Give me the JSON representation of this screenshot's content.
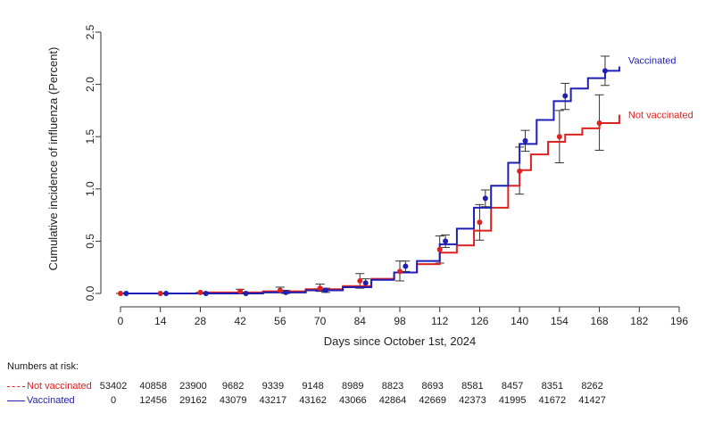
{
  "chart_data": {
    "type": "line",
    "xlabel": "Days since October 1st, 2024",
    "ylabel": "Cumulative incidence of influenza (Percent)",
    "xlim": [
      0,
      196
    ],
    "ylim": [
      0,
      2.5
    ],
    "x_ticks": [
      "0",
      "14",
      "28",
      "42",
      "56",
      "70",
      "84",
      "98",
      "112",
      "126",
      "140",
      "154",
      "168",
      "182",
      "196"
    ],
    "y_ticks": [
      "0.0",
      "0.5",
      "1.0",
      "1.5",
      "2.0",
      "2.5"
    ],
    "grid": false,
    "series": [
      {
        "name": "Not vaccinated",
        "color": "#dd2222",
        "curve": [
          [
            0,
            0
          ],
          [
            10,
            0
          ],
          [
            30,
            0.01
          ],
          [
            50,
            0.02
          ],
          [
            65,
            0.04
          ],
          [
            78,
            0.07
          ],
          [
            88,
            0.14
          ],
          [
            96,
            0.2
          ],
          [
            104,
            0.28
          ],
          [
            112,
            0.39
          ],
          [
            118,
            0.46
          ],
          [
            124,
            0.6
          ],
          [
            130,
            0.82
          ],
          [
            136,
            1.03
          ],
          [
            140,
            1.18
          ],
          [
            144,
            1.33
          ],
          [
            150,
            1.45
          ],
          [
            156,
            1.52
          ],
          [
            162,
            1.58
          ],
          [
            168,
            1.63
          ],
          [
            175,
            1.71
          ]
        ],
        "points": [
          [
            0,
            0
          ],
          [
            14,
            0
          ],
          [
            28,
            0.01
          ],
          [
            42,
            0.02
          ],
          [
            56,
            0.03
          ],
          [
            70,
            0.05
          ],
          [
            84,
            0.12
          ],
          [
            98,
            0.21
          ],
          [
            112,
            0.42
          ],
          [
            126,
            0.68
          ],
          [
            140,
            1.17
          ],
          [
            154,
            1.5
          ],
          [
            168,
            1.63
          ]
        ],
        "ci": [
          [
            0,
            0,
            0
          ],
          [
            14,
            0,
            0
          ],
          [
            28,
            0,
            0.01
          ],
          [
            42,
            0,
            0.04
          ],
          [
            56,
            0.01,
            0.06
          ],
          [
            70,
            0.02,
            0.09
          ],
          [
            84,
            0.05,
            0.19
          ],
          [
            98,
            0.12,
            0.31
          ],
          [
            112,
            0.29,
            0.55
          ],
          [
            126,
            0.51,
            0.85
          ],
          [
            140,
            0.95,
            1.4
          ],
          [
            154,
            1.25,
            1.75
          ],
          [
            168,
            1.37,
            1.9
          ]
        ],
        "label": "Not vaccinated"
      },
      {
        "name": "Vaccinated",
        "color": "#1f1fb4",
        "curve": [
          [
            0,
            0
          ],
          [
            14,
            0
          ],
          [
            30,
            0.0
          ],
          [
            50,
            0.01
          ],
          [
            65,
            0.03
          ],
          [
            78,
            0.06
          ],
          [
            88,
            0.13
          ],
          [
            96,
            0.2
          ],
          [
            104,
            0.31
          ],
          [
            112,
            0.47
          ],
          [
            118,
            0.62
          ],
          [
            124,
            0.82
          ],
          [
            130,
            1.03
          ],
          [
            136,
            1.25
          ],
          [
            140,
            1.43
          ],
          [
            146,
            1.66
          ],
          [
            152,
            1.84
          ],
          [
            158,
            1.96
          ],
          [
            164,
            2.06
          ],
          [
            170,
            2.13
          ],
          [
            175,
            2.17
          ]
        ],
        "points": [
          [
            2,
            0
          ],
          [
            16,
            0
          ],
          [
            30,
            0
          ],
          [
            44,
            0
          ],
          [
            58,
            0.01
          ],
          [
            72,
            0.03
          ],
          [
            86,
            0.1
          ],
          [
            100,
            0.26
          ],
          [
            114,
            0.5
          ],
          [
            128,
            0.91
          ],
          [
            142,
            1.46
          ],
          [
            156,
            1.89
          ],
          [
            170,
            2.13
          ]
        ],
        "ci": [
          [
            2,
            0,
            0
          ],
          [
            16,
            0,
            0
          ],
          [
            30,
            0,
            0.01
          ],
          [
            44,
            0,
            0.01
          ],
          [
            58,
            0,
            0.03
          ],
          [
            72,
            0.01,
            0.05
          ],
          [
            86,
            0.07,
            0.14
          ],
          [
            100,
            0.21,
            0.31
          ],
          [
            114,
            0.44,
            0.56
          ],
          [
            128,
            0.83,
            0.99
          ],
          [
            142,
            1.36,
            1.56
          ],
          [
            156,
            1.76,
            2.01
          ],
          [
            170,
            1.99,
            2.27
          ]
        ],
        "label": "Vaccinated"
      }
    ]
  },
  "risk_table": {
    "title": "Numbers at risk:",
    "rows": [
      {
        "label": "Not vaccinated",
        "color": "#dd2222",
        "style": "dashed",
        "values": [
          "53402",
          "40858",
          "23900",
          "9682",
          "9339",
          "9148",
          "8989",
          "8823",
          "8693",
          "8581",
          "8457",
          "8351",
          "8262"
        ]
      },
      {
        "label": "Vaccinated",
        "color": "#1f1fb4",
        "style": "solid",
        "values": [
          "0",
          "12456",
          "29162",
          "43079",
          "43217",
          "43162",
          "43066",
          "42864",
          "42669",
          "42373",
          "41995",
          "41672",
          "41427"
        ]
      }
    ]
  }
}
